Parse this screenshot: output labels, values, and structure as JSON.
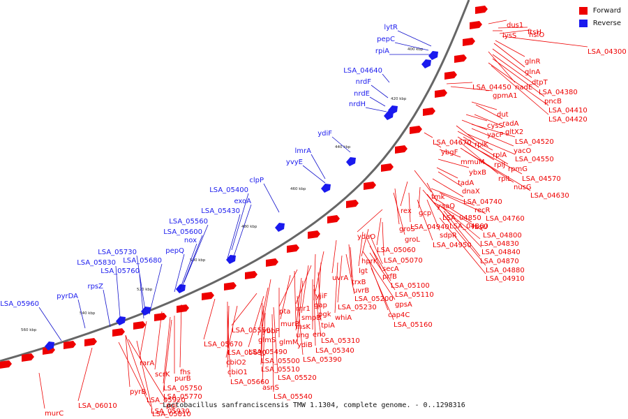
{
  "legend": {
    "forward_label": "Forward",
    "reverse_label": "Reverse",
    "forward_color": "#ee0000",
    "reverse_color": "#1a1aee"
  },
  "caption": "Lactobacillus sanfranciscensis TMW 1.1304, complete genome. - 0..1298316",
  "ticks": [
    "400 kbp",
    "420 kbp",
    "440 kbp",
    "460 kbp",
    "480 kbp",
    "500 kbp",
    "520 kbp",
    "540 kbp",
    "560 kbp",
    "580 kbp",
    "600 kbp"
  ],
  "forward_labels": [
    "dus1",
    "ftsH",
    "lysS",
    "hslO",
    "LSA_04300",
    "glnR",
    "glnA",
    "dtpT",
    "LSA_04450",
    "nadE",
    "LSA_04380",
    "gpmA1",
    "pncB",
    "LSA_04410",
    "LSA_04420",
    "dut",
    "radA",
    "cysS",
    "gltX2",
    "yacP",
    "LSA_04520",
    "rplK",
    "yacO",
    "rplA",
    "LSA_04550",
    "rplJ",
    "rpmG",
    "rplL",
    "LSA_04570",
    "nusG",
    "LSA_04630",
    "LSA_04670",
    "ybgF",
    "mmuM",
    "ybxB",
    "tadA",
    "dnaX",
    "tmk",
    "LSA_04740",
    "yaaQ",
    "recR",
    "rex",
    "gcp",
    "LSA_04850",
    "LSA_04760",
    "LSA_04940",
    "LSA_04860",
    "rbsU",
    "groS",
    "sdpR",
    "LSA_04800",
    "groL",
    "LSA_04950",
    "LSA_04830",
    "LSA_04840",
    "LSA_04870",
    "LSA_04880",
    "LSA_04910",
    "ydaO",
    "LSA_05060",
    "LSA_05070",
    "hprK",
    "lgt",
    "secA",
    "prfB",
    "LSA_05100",
    "uvrA",
    "trxB",
    "uvrB",
    "LSA_05110",
    "yjiF",
    "LSA_05200",
    "gpsA",
    "gap",
    "LSA_05230",
    "rnr1",
    "pgk",
    "cap4C",
    "smpB",
    "whiA",
    "pta",
    "insK",
    "tpiA",
    "LSA_05160",
    "murB",
    "ung",
    "eno",
    "ybbP",
    "ydiB",
    "LSA_05310",
    "glmS",
    "glmM",
    "LSA_05340",
    "LSA_05550",
    "LSA_05490",
    "LSA_05390",
    "LSA_05670",
    "LSA_05500",
    "LSA_05630",
    "LSA_05510",
    "cbiO2",
    "LSA_05520",
    "cbiO1",
    "LSA_05660",
    "asnS",
    "LSA_05540",
    "fhs",
    "scrK",
    "purB",
    "rarA",
    "LSA_05750",
    "LSA_05770",
    "pyrB",
    "LSA_05920",
    "pgi",
    "LSA_05930",
    "LSA_05810",
    "murC",
    "LSA_06010",
    "hit"
  ],
  "reverse_labels": [
    "lytR",
    "pepC",
    "rpiA",
    "LSA_04640",
    "nrdF",
    "nrdE",
    "nrdH",
    "ydiF",
    "lmrA",
    "yvyE",
    "clpP",
    "LSA_05400",
    "exoA",
    "LSA_05430",
    "LSA_05560",
    "LSA_05600",
    "nox",
    "pepQ",
    "LSA_05730",
    "LSA_05680",
    "LSA_05830",
    "LSA_05760",
    "rpsZ",
    "pyrDA",
    "LSA_05960"
  ]
}
